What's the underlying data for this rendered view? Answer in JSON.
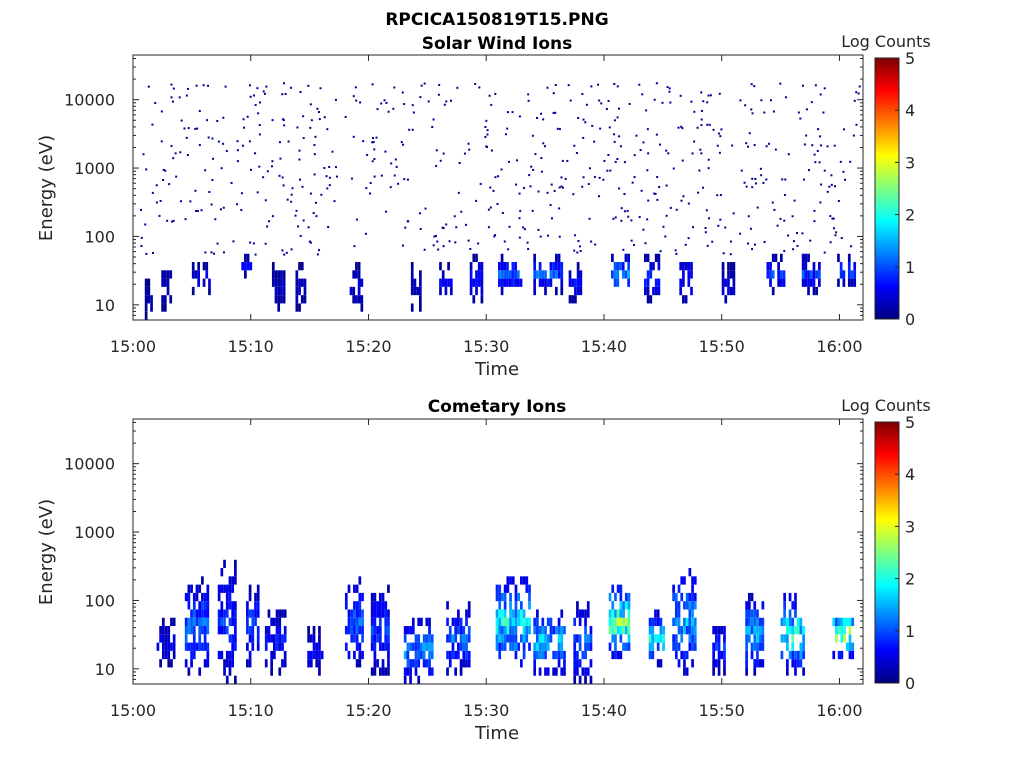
{
  "figure_title": "RPCICA150819T15.PNG",
  "colorbar_palette": [
    "#00007f",
    "#0000ff",
    "#007fff",
    "#00ffff",
    "#7fff7f",
    "#ffff00",
    "#ff7f00",
    "#ff0000",
    "#7f0000"
  ],
  "chart_data": [
    {
      "type": "heatmap",
      "title": "Solar Wind Ions",
      "xlabel": "Time",
      "ylabel": "Energy (eV)",
      "x_ticks": [
        "15:00",
        "15:10",
        "15:20",
        "15:30",
        "15:40",
        "15:50",
        "16:00"
      ],
      "x_range_minutes": [
        0,
        62
      ],
      "y_ticks": [
        "10",
        "100",
        "1000",
        "10000"
      ],
      "y_range_eV": [
        6,
        45000
      ],
      "y_scale": "log",
      "colorbar": {
        "label": "Log Counts",
        "ticks": [
          "0",
          "1",
          "2",
          "3",
          "4",
          "5"
        ],
        "range": [
          0,
          5
        ],
        "colormap": "jet"
      },
      "sparse_noise": {
        "energy_range_eV": [
          60,
          15000
        ],
        "typical_log_counts": 0.1,
        "time_range_minutes": [
          0.5,
          61.5
        ]
      },
      "low_energy_clusters": [
        {
          "t_min": [
            1.0,
            1.6
          ],
          "e_eV": [
            6,
            20
          ],
          "v": 0.2
        },
        {
          "t_min": [
            2.4,
            3.2
          ],
          "e_eV": [
            8,
            35
          ],
          "v": 0.3
        },
        {
          "t_min": [
            5.0,
            6.4
          ],
          "e_eV": [
            15,
            40
          ],
          "v": 0.5
        },
        {
          "t_min": [
            9.2,
            10.0
          ],
          "e_eV": [
            25,
            45
          ],
          "v": 0.6
        },
        {
          "t_min": [
            11.8,
            12.8
          ],
          "e_eV": [
            10,
            35
          ],
          "v": 0.3
        },
        {
          "t_min": [
            13.8,
            14.6
          ],
          "e_eV": [
            10,
            35
          ],
          "v": 0.3
        },
        {
          "t_min": [
            18.4,
            19.4
          ],
          "e_eV": [
            10,
            40
          ],
          "v": 0.4
        },
        {
          "t_min": [
            23.6,
            24.4
          ],
          "e_eV": [
            10,
            35
          ],
          "v": 0.3
        },
        {
          "t_min": [
            26.0,
            27.0
          ],
          "e_eV": [
            12,
            35
          ],
          "v": 0.5
        },
        {
          "t_min": [
            28.6,
            29.6
          ],
          "e_eV": [
            12,
            45
          ],
          "v": 0.6
        },
        {
          "t_min": [
            31.0,
            33.0
          ],
          "e_eV": [
            15,
            45
          ],
          "v": 0.9
        },
        {
          "t_min": [
            34.0,
            36.4
          ],
          "e_eV": [
            15,
            45
          ],
          "v": 0.9
        },
        {
          "t_min": [
            37.0,
            38.0
          ],
          "e_eV": [
            12,
            40
          ],
          "v": 0.6
        },
        {
          "t_min": [
            40.6,
            42.0
          ],
          "e_eV": [
            18,
            45
          ],
          "v": 1.2
        },
        {
          "t_min": [
            43.4,
            44.6
          ],
          "e_eV": [
            12,
            45
          ],
          "v": 0.7
        },
        {
          "t_min": [
            46.4,
            47.4
          ],
          "e_eV": [
            12,
            45
          ],
          "v": 0.7
        },
        {
          "t_min": [
            50.0,
            51.0
          ],
          "e_eV": [
            10,
            35
          ],
          "v": 0.4
        },
        {
          "t_min": [
            53.8,
            55.2
          ],
          "e_eV": [
            15,
            45
          ],
          "v": 0.8
        },
        {
          "t_min": [
            56.8,
            58.2
          ],
          "e_eV": [
            15,
            45
          ],
          "v": 0.8
        },
        {
          "t_min": [
            59.8,
            61.2
          ],
          "e_eV": [
            20,
            45
          ],
          "v": 1.0
        }
      ]
    },
    {
      "type": "heatmap",
      "title": "Cometary Ions",
      "xlabel": "Time",
      "ylabel": "Energy (eV)",
      "x_ticks": [
        "15:00",
        "15:10",
        "15:20",
        "15:30",
        "15:40",
        "15:50",
        "16:00"
      ],
      "x_range_minutes": [
        0,
        62
      ],
      "y_ticks": [
        "10",
        "100",
        "1000",
        "10000"
      ],
      "y_range_eV": [
        6,
        45000
      ],
      "y_scale": "log",
      "colorbar": {
        "label": "Log Counts",
        "ticks": [
          "0",
          "1",
          "2",
          "3",
          "4",
          "5"
        ],
        "range": [
          0,
          5
        ],
        "colormap": "jet"
      },
      "clusters": [
        {
          "t_min": [
            2.0,
            3.4
          ],
          "e_eV": [
            12,
            45
          ],
          "v": 0.5,
          "top_eV": 45
        },
        {
          "t_min": [
            4.4,
            6.4
          ],
          "e_eV": [
            8,
            180
          ],
          "v": 1.0,
          "top_eV": 180
        },
        {
          "t_min": [
            7.2,
            8.6
          ],
          "e_eV": [
            6,
            320
          ],
          "v": 0.8,
          "top_eV": 320
        },
        {
          "t_min": [
            9.6,
            10.6
          ],
          "e_eV": [
            12,
            150
          ],
          "v": 0.9,
          "top_eV": 150
        },
        {
          "t_min": [
            11.2,
            13.0
          ],
          "e_eV": [
            10,
            60
          ],
          "v": 0.7,
          "top_eV": 60
        },
        {
          "t_min": [
            14.8,
            16.0
          ],
          "e_eV": [
            10,
            35
          ],
          "v": 0.6,
          "top_eV": 35
        },
        {
          "t_min": [
            18.0,
            19.6
          ],
          "e_eV": [
            12,
            220
          ],
          "v": 1.0,
          "top_eV": 220
        },
        {
          "t_min": [
            20.2,
            21.8
          ],
          "e_eV": [
            8,
            140
          ],
          "v": 0.8,
          "top_eV": 140
        },
        {
          "t_min": [
            23.0,
            25.4
          ],
          "e_eV": [
            6,
            45
          ],
          "v": 1.2,
          "top_eV": 45
        },
        {
          "t_min": [
            26.6,
            28.6
          ],
          "e_eV": [
            10,
            90
          ],
          "v": 1.0,
          "top_eV": 90
        },
        {
          "t_min": [
            30.8,
            33.6
          ],
          "e_eV": [
            12,
            200
          ],
          "v": 1.7,
          "top_eV": 200
        },
        {
          "t_min": [
            34.0,
            36.6
          ],
          "e_eV": [
            10,
            60
          ],
          "v": 1.5,
          "top_eV": 60
        },
        {
          "t_min": [
            37.4,
            38.8
          ],
          "e_eV": [
            6,
            90
          ],
          "v": 1.0,
          "top_eV": 90
        },
        {
          "t_min": [
            40.4,
            42.2
          ],
          "e_eV": [
            15,
            140
          ],
          "v": 2.2,
          "top_eV": 140
        },
        {
          "t_min": [
            43.8,
            45.0
          ],
          "e_eV": [
            12,
            60
          ],
          "v": 1.5,
          "top_eV": 60
        },
        {
          "t_min": [
            45.8,
            47.8
          ],
          "e_eV": [
            8,
            250
          ],
          "v": 1.3,
          "top_eV": 250
        },
        {
          "t_min": [
            49.2,
            50.2
          ],
          "e_eV": [
            8,
            50
          ],
          "v": 0.8,
          "top_eV": 50
        },
        {
          "t_min": [
            52.0,
            53.6
          ],
          "e_eV": [
            10,
            100
          ],
          "v": 1.3,
          "top_eV": 100
        },
        {
          "t_min": [
            55.0,
            57.0
          ],
          "e_eV": [
            10,
            120
          ],
          "v": 1.8,
          "top_eV": 120
        },
        {
          "t_min": [
            59.4,
            61.2
          ],
          "e_eV": [
            15,
            70
          ],
          "v": 2.4,
          "top_eV": 70
        }
      ]
    }
  ]
}
